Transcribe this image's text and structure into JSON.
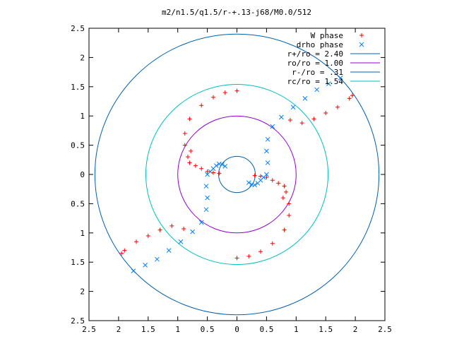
{
  "chart_data": {
    "type": "scatter",
    "title": "m2/n1.5/q1.5/r-+.13-j68/M0.0/512",
    "xlim": [
      -2.5,
      2.5
    ],
    "ylim": [
      -2.5,
      2.5
    ],
    "xticks": [
      -2.5,
      -2,
      -1.5,
      -1,
      -0.5,
      0,
      0.5,
      1,
      1.5,
      2,
      2.5
    ],
    "yticks": [
      -2.5,
      -2,
      -1.5,
      -1,
      -0.5,
      0,
      0.5,
      1,
      1.5,
      2,
      2.5
    ],
    "xtick_labels": [
      "2.5",
      "2",
      "1.5",
      "1",
      "0.5",
      "0",
      "0.5",
      "1",
      "1.5",
      "2",
      "2.5"
    ],
    "ytick_labels": [
      "2.5",
      "2",
      "1.5",
      "1",
      "0.5",
      "0",
      "0.5",
      "1",
      "1.5",
      "2",
      "2.5"
    ],
    "grid": false,
    "legend_position": "top-right",
    "series": [
      {
        "name": "W phase",
        "marker": "+",
        "color": "#ff0000",
        "x": [
          0.0,
          -0.2,
          -0.4,
          -0.6,
          -0.8,
          -0.88,
          -0.88,
          -0.83,
          -0.8,
          -0.78,
          -0.7,
          -0.6,
          -0.5,
          -0.4,
          -0.3,
          0.0,
          0.2,
          0.4,
          0.6,
          0.8,
          0.88,
          0.88,
          0.83,
          0.8,
          0.78,
          0.7,
          0.6,
          0.5,
          0.4,
          0.3,
          0.9,
          1.1,
          1.3,
          1.5,
          1.7,
          1.9,
          1.95,
          -0.9,
          -1.1,
          -1.3,
          -1.5,
          -1.7,
          -1.9,
          -1.95
        ],
        "y": [
          1.43,
          1.4,
          1.32,
          1.18,
          0.95,
          0.7,
          0.5,
          0.3,
          0.2,
          0.4,
          0.15,
          0.1,
          0.05,
          0.03,
          0.02,
          -1.43,
          -1.4,
          -1.32,
          -1.18,
          -0.95,
          -0.7,
          -0.5,
          -0.3,
          -0.2,
          -0.4,
          -0.15,
          -0.1,
          -0.05,
          -0.03,
          -0.02,
          0.93,
          0.88,
          0.95,
          1.05,
          1.15,
          1.3,
          1.35,
          -0.93,
          -0.88,
          -0.95,
          -1.05,
          -1.15,
          -1.3,
          -1.35
        ]
      },
      {
        "name": "drho phase",
        "marker": "x",
        "color": "#0080ff",
        "x": [
          -1.75,
          -1.55,
          -1.35,
          -1.15,
          -0.95,
          -0.75,
          -0.6,
          -0.52,
          -0.5,
          -0.52,
          -0.5,
          -0.45,
          -0.4,
          -0.35,
          -0.3,
          -0.25,
          -0.2,
          1.75,
          1.55,
          1.35,
          1.15,
          0.95,
          0.75,
          0.6,
          0.52,
          0.5,
          0.52,
          0.5,
          0.45,
          0.4,
          0.35,
          0.3,
          0.25,
          0.2
        ],
        "y": [
          -1.65,
          -1.55,
          -1.45,
          -1.3,
          -1.15,
          -0.98,
          -0.82,
          -0.6,
          -0.4,
          -0.2,
          0.0,
          0.05,
          0.1,
          0.15,
          0.18,
          0.17,
          0.14,
          1.65,
          1.55,
          1.45,
          1.3,
          1.15,
          0.98,
          0.82,
          0.6,
          0.4,
          0.2,
          0.0,
          -0.05,
          -0.1,
          -0.15,
          -0.18,
          -0.17,
          -0.14
        ]
      }
    ],
    "circles": [
      {
        "label": "r+/ro = 2.40",
        "r": 2.4,
        "color": "#0060ad"
      },
      {
        "label": "ro/ro = 1.00",
        "r": 1.0,
        "color": "#9400d3"
      },
      {
        "label": "r-/ro = .31",
        "r": 0.31,
        "color": "#0060ad"
      },
      {
        "label": "rc/ro = 1.54",
        "r": 1.54,
        "color": "#00c0c0"
      }
    ]
  }
}
